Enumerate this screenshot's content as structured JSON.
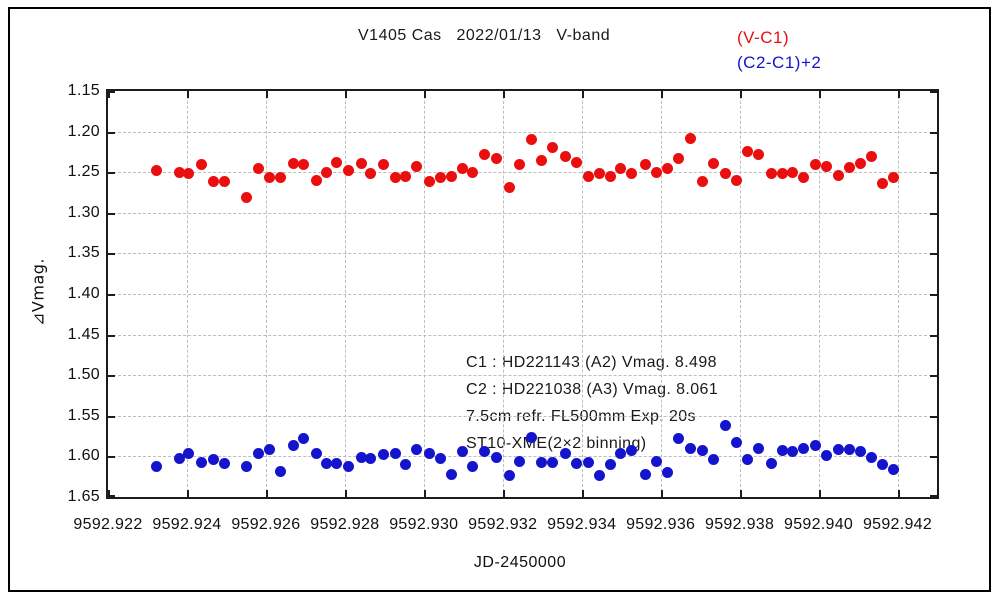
{
  "page": {
    "background": "#ffffff"
  },
  "chart_data": {
    "type": "scatter",
    "title": "V1405 Cas   2022/01/13   V-band",
    "xlabel": "JD-2450000",
    "ylabel": "⊿Vmag.",
    "xlim": [
      9592.922,
      9592.943
    ],
    "ylim": [
      1.65,
      1.15
    ],
    "y_axis_inverted_magnitudes": true,
    "grid": "dashed",
    "legend_position": "top-right",
    "xticks": {
      "values": [
        9592.922,
        9592.924,
        9592.926,
        9592.928,
        9592.93,
        9592.932,
        9592.934,
        9592.936,
        9592.938,
        9592.94,
        9592.942
      ],
      "labels": [
        "9592.922",
        "9592.924",
        "9592.926",
        "9592.928",
        "9592.930",
        "9592.932",
        "9592.934",
        "9592.936",
        "9592.938",
        "9592.940",
        "9592.942"
      ]
    },
    "yticks": {
      "values": [
        1.15,
        1.2,
        1.25,
        1.3,
        1.35,
        1.4,
        1.45,
        1.5,
        1.55,
        1.6,
        1.65
      ],
      "labels": [
        "1.15",
        "1.20",
        "1.25",
        "1.30",
        "1.35",
        "1.40",
        "1.45",
        "1.50",
        "1.55",
        "1.60",
        "1.65"
      ]
    },
    "annotations": [
      "C1 : HD221143 (A2) Vmag. 8.498",
      "C2 : HD221038 (A3) Vmag. 8.061",
      "7.5cm refr. FL500mm Exp. 20s",
      "ST10-XME(2×2 binning)"
    ],
    "x": [
      9592.92324,
      9592.9238,
      9592.92405,
      9592.92438,
      9592.92466,
      9592.92496,
      9592.92552,
      9592.9258,
      9592.9261,
      9592.92638,
      9592.92671,
      9592.92696,
      9592.92729,
      9592.92754,
      9592.9278,
      9592.92808,
      9592.92843,
      9592.92866,
      9592.92899,
      9592.92929,
      9592.92954,
      9592.92982,
      9592.93015,
      9592.93043,
      9592.93071,
      9592.93099,
      9592.93124,
      9592.93154,
      9592.93185,
      9592.93218,
      9592.93243,
      9592.93273,
      9592.93299,
      9592.93327,
      9592.93359,
      9592.93387,
      9592.93418,
      9592.93446,
      9592.93473,
      9592.93499,
      9592.93527,
      9592.93562,
      9592.9359,
      9592.93618,
      9592.93646,
      9592.93676,
      9592.93706,
      9592.93734,
      9592.93765,
      9592.93792,
      9592.9382,
      9592.93848,
      9592.93881,
      9592.93909,
      9592.93934,
      9592.93962,
      9592.93992,
      9592.9402,
      9592.94051,
      9592.94078,
      9592.94106,
      9592.94134,
      9592.94162,
      9592.9419
    ],
    "series": [
      {
        "name": "(V-C1)",
        "color": "#ea0e0e",
        "marker": "circle",
        "values": [
          1.248,
          1.25,
          1.251,
          1.24,
          1.262,
          1.262,
          1.281,
          1.246,
          1.257,
          1.257,
          1.239,
          1.24,
          1.26,
          1.25,
          1.238,
          1.248,
          1.239,
          1.251,
          1.24,
          1.256,
          1.255,
          1.243,
          1.261,
          1.256,
          1.255,
          1.246,
          1.25,
          1.228,
          1.233,
          1.269,
          1.24,
          1.21,
          1.236,
          1.22,
          1.231,
          1.238,
          1.255,
          1.252,
          1.255,
          1.245,
          1.251,
          1.241,
          1.25,
          1.246,
          1.233,
          1.208,
          1.262,
          1.239,
          1.251,
          1.26,
          1.225,
          1.228,
          1.252,
          1.252,
          1.25,
          1.257,
          1.24,
          1.243,
          1.254,
          1.244,
          1.239,
          1.231,
          1.264,
          1.256
        ]
      },
      {
        "name": "(C2-C1)+2",
        "color": "#1414cc",
        "marker": "circle",
        "values": [
          1.612,
          1.602,
          1.597,
          1.607,
          1.604,
          1.609,
          1.612,
          1.596,
          1.591,
          1.618,
          1.587,
          1.578,
          1.597,
          1.609,
          1.609,
          1.613,
          1.601,
          1.602,
          1.598,
          1.597,
          1.61,
          1.592,
          1.596,
          1.602,
          1.622,
          1.594,
          1.613,
          1.594,
          1.601,
          1.624,
          1.606,
          1.577,
          1.608,
          1.608,
          1.597,
          1.609,
          1.607,
          1.623,
          1.61,
          1.596,
          1.593,
          1.622,
          1.606,
          1.62,
          1.578,
          1.59,
          1.593,
          1.604,
          1.562,
          1.583,
          1.604,
          1.59,
          1.609,
          1.593,
          1.594,
          1.59,
          1.587,
          1.599,
          1.591,
          1.591,
          1.594,
          1.601,
          1.61,
          1.616
        ]
      }
    ]
  }
}
